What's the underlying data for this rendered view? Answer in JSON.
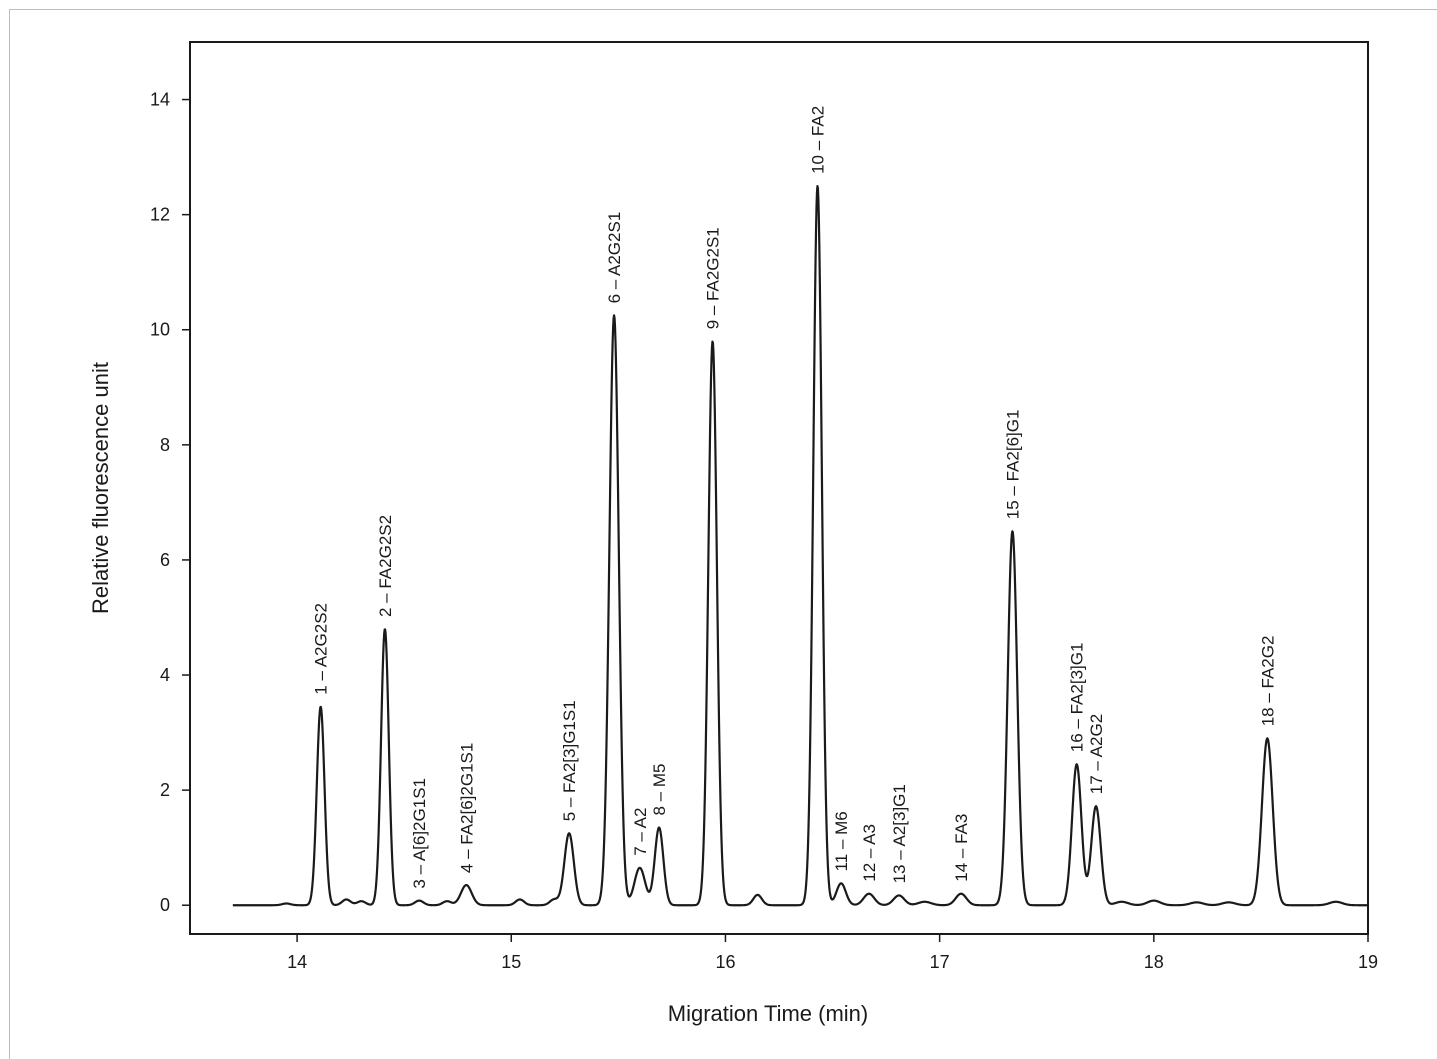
{
  "chart_data": {
    "type": "line",
    "title": "",
    "xlabel": "Migration Time (min)",
    "ylabel": "Relative fluorescence unit",
    "xlim": [
      13.5,
      19
    ],
    "ylim": [
      -0.5,
      15
    ],
    "x_ticks": [
      "14",
      "15",
      "16",
      "17",
      "18",
      "19"
    ],
    "y_ticks": [
      "0",
      "2",
      "4",
      "6",
      "8",
      "10",
      "12",
      "14"
    ],
    "x_tick_values": [
      14,
      15,
      16,
      17,
      18,
      19
    ],
    "y_tick_values": [
      0,
      2,
      4,
      6,
      8,
      10,
      12,
      14
    ],
    "grid": false,
    "series_color": "#1a1a1a",
    "peaks": [
      {
        "label": "1 – A2G2S2",
        "x": 14.11,
        "y": 3.45,
        "w": 0.018
      },
      {
        "label": "2 – FA2G2S2",
        "x": 14.41,
        "y": 4.8,
        "w": 0.018
      },
      {
        "label": "3 – A[6]2G1S1",
        "x": 14.57,
        "y": 0.08,
        "w": 0.02
      },
      {
        "label": "4 – FA2[6]2G1S1",
        "x": 14.79,
        "y": 0.35,
        "w": 0.025
      },
      {
        "label": "5 – FA2[3]G1S1",
        "x": 15.27,
        "y": 1.25,
        "w": 0.022
      },
      {
        "label": "6 – A2G2S1",
        "x": 15.48,
        "y": 10.25,
        "w": 0.022
      },
      {
        "label": "7 – A2",
        "x": 15.6,
        "y": 0.65,
        "w": 0.025
      },
      {
        "label": "8 – M5",
        "x": 15.69,
        "y": 1.35,
        "w": 0.02
      },
      {
        "label": "9 – FA2G2S1",
        "x": 15.94,
        "y": 9.8,
        "w": 0.02
      },
      {
        "label": "10 – FA2",
        "x": 16.43,
        "y": 12.5,
        "w": 0.02
      },
      {
        "label": "11 – M6",
        "x": 16.54,
        "y": 0.38,
        "w": 0.022
      },
      {
        "label": "12 – A3",
        "x": 16.67,
        "y": 0.2,
        "w": 0.025
      },
      {
        "label": "13 – A2[3]G1",
        "x": 16.81,
        "y": 0.17,
        "w": 0.025
      },
      {
        "label": "14 – FA3",
        "x": 17.1,
        "y": 0.2,
        "w": 0.025
      },
      {
        "label": "15 – FA2[6]G1",
        "x": 17.34,
        "y": 6.5,
        "w": 0.022
      },
      {
        "label": "16 – FA2[3]G1",
        "x": 17.64,
        "y": 2.45,
        "w": 0.022
      },
      {
        "label": "17 – A2G2",
        "x": 17.73,
        "y": 1.72,
        "w": 0.022
      },
      {
        "label": "18 – FA2G2",
        "x": 18.53,
        "y": 2.9,
        "w": 0.025
      }
    ],
    "minor_bumps": [
      {
        "x": 13.95,
        "y": 0.03,
        "w": 0.02
      },
      {
        "x": 14.23,
        "y": 0.1,
        "w": 0.02
      },
      {
        "x": 14.3,
        "y": 0.07,
        "w": 0.02
      },
      {
        "x": 14.7,
        "y": 0.07,
        "w": 0.02
      },
      {
        "x": 15.04,
        "y": 0.1,
        "w": 0.02
      },
      {
        "x": 15.2,
        "y": 0.1,
        "w": 0.02
      },
      {
        "x": 16.15,
        "y": 0.18,
        "w": 0.02
      },
      {
        "x": 16.93,
        "y": 0.06,
        "w": 0.03
      },
      {
        "x": 17.85,
        "y": 0.06,
        "w": 0.03
      },
      {
        "x": 18.0,
        "y": 0.08,
        "w": 0.03
      },
      {
        "x": 18.2,
        "y": 0.05,
        "w": 0.03
      },
      {
        "x": 18.35,
        "y": 0.05,
        "w": 0.03
      },
      {
        "x": 18.85,
        "y": 0.06,
        "w": 0.03
      }
    ]
  }
}
